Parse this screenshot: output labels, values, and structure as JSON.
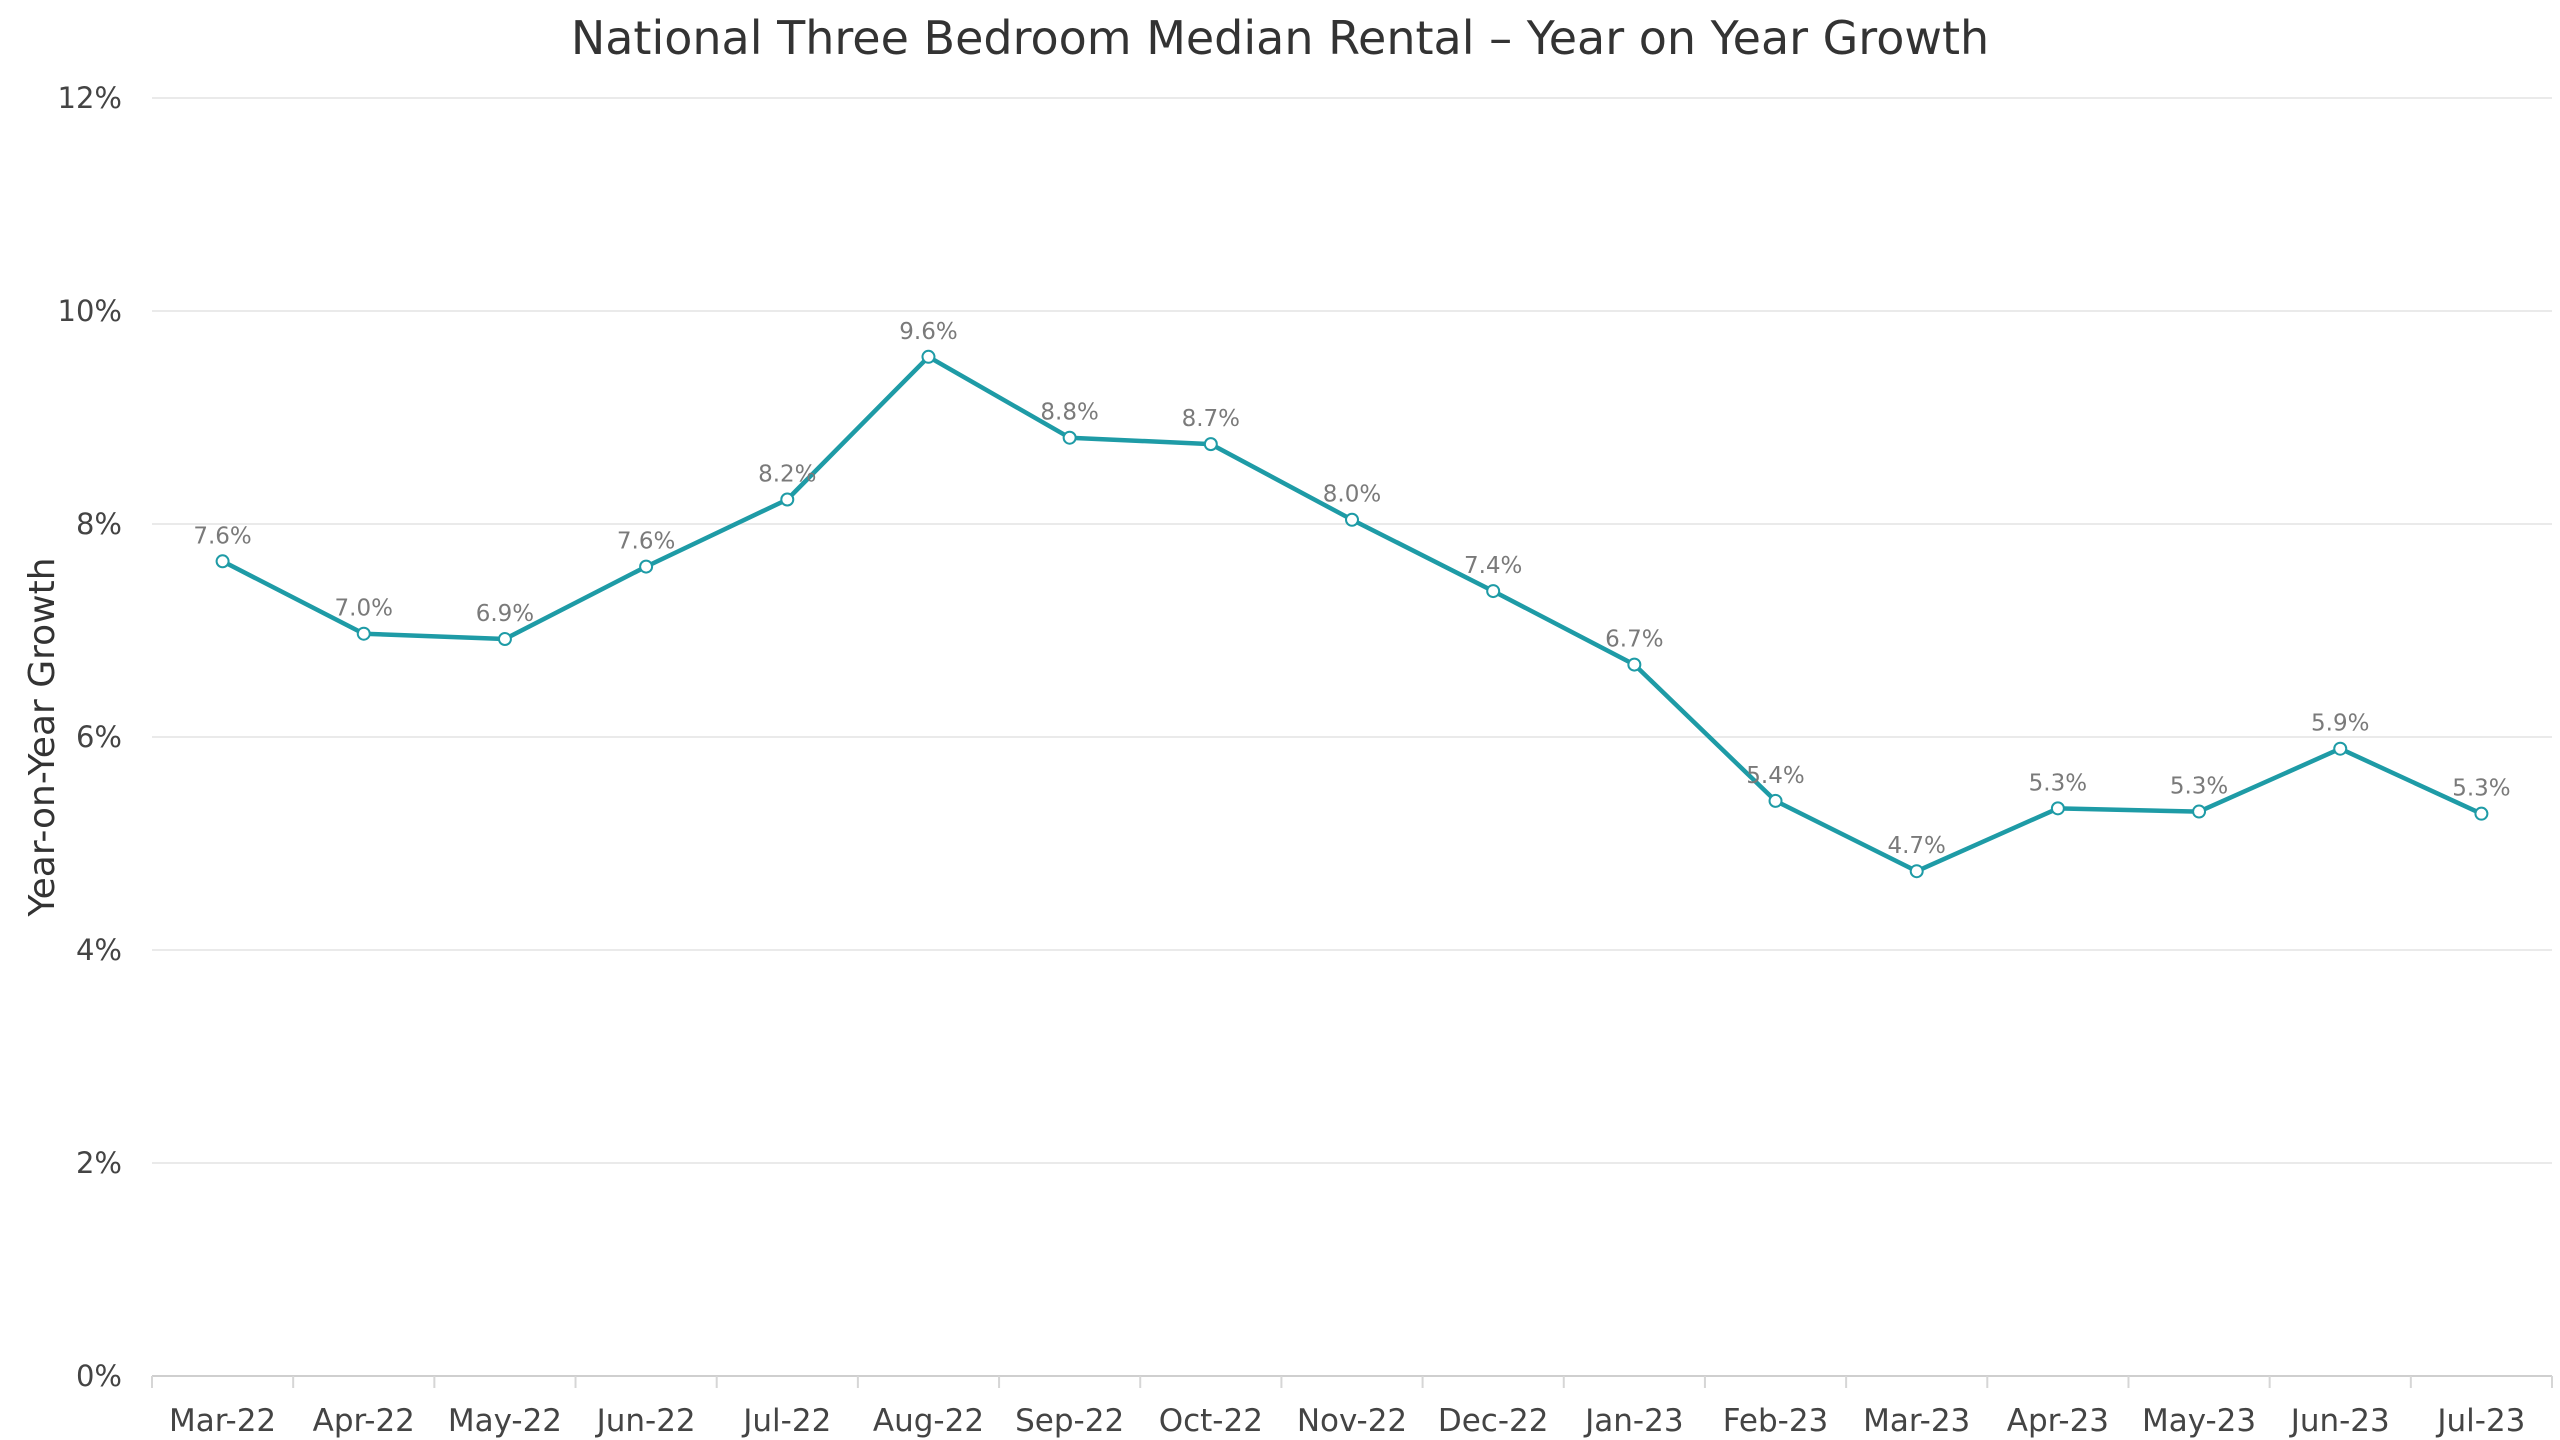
{
  "chart_data": {
    "type": "line",
    "title": "National Three Bedroom Median Rental – Year on Year Growth",
    "xlabel": "",
    "ylabel": "Year-on-Year Growth",
    "categories": [
      "Mar-22",
      "Apr-22",
      "May-22",
      "Jun-22",
      "Jul-22",
      "Aug-22",
      "Sep-22",
      "Oct-22",
      "Nov-22",
      "Dec-22",
      "Jan-23",
      "Feb-23",
      "Mar-23",
      "Apr-23",
      "May-23",
      "Jun-23",
      "Jul-23"
    ],
    "series": [
      {
        "values": [
          7.65,
          6.97,
          6.92,
          7.6,
          8.23,
          9.57,
          8.81,
          8.75,
          8.04,
          7.37,
          6.68,
          5.4,
          4.74,
          5.33,
          5.3,
          5.89,
          5.28
        ],
        "labels": [
          "7.6%",
          "7.0%",
          "6.9%",
          "7.6%",
          "8.2%",
          "9.6%",
          "8.8%",
          "8.7%",
          "8.0%",
          "7.4%",
          "6.7%",
          "5.4%",
          "4.7%",
          "5.3%",
          "5.3%",
          "5.9%",
          "5.3%"
        ],
        "color": "#1e9ba6"
      }
    ],
    "ylim": [
      0,
      12
    ],
    "yticks": [
      0,
      2,
      4,
      6,
      8,
      10,
      12
    ],
    "ytick_labels": [
      "0%",
      "2%",
      "4%",
      "6%",
      "8%",
      "10%",
      "12%"
    ],
    "grid": true,
    "legend": "none"
  }
}
